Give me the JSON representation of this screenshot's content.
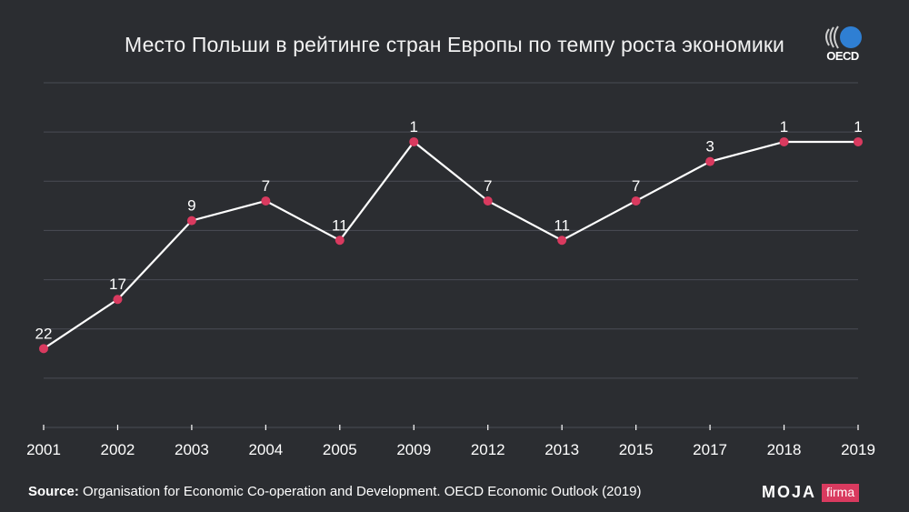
{
  "title": "Место Польши в рейтинге стран Европы по темпу роста экономики",
  "logo": {
    "icon": "oecd-logo-icon",
    "text": "OECD"
  },
  "source": {
    "label": "Source:",
    "text": "Organisation for Economic Co-operation and Development. OECD Economic Outlook (2019)"
  },
  "brand": {
    "main": "MOJA",
    "tag": "firma"
  },
  "colors": {
    "background": "#2b2d31",
    "line": "#ffffff",
    "marker": "#d93a5f",
    "grid": "#4a4d55",
    "logo_circle": "#2f7fd3"
  },
  "chart_data": {
    "type": "line",
    "title": "Место Польши в рейтинге стран Европы по темпу роста экономики",
    "xlabel": "",
    "ylabel": "",
    "categories": [
      "2001",
      "2002",
      "2003",
      "2004",
      "2005",
      "2009",
      "2012",
      "2013",
      "2015",
      "2017",
      "2018",
      "2019"
    ],
    "values": [
      22,
      17,
      9,
      7,
      11,
      1,
      7,
      11,
      7,
      3,
      1,
      1
    ],
    "y_axis": "inverted",
    "ylim": [
      30,
      -5
    ],
    "y_gridlines": [
      30,
      25,
      20,
      15,
      10,
      5,
      0,
      -5
    ],
    "grid": true,
    "legend": "none"
  }
}
